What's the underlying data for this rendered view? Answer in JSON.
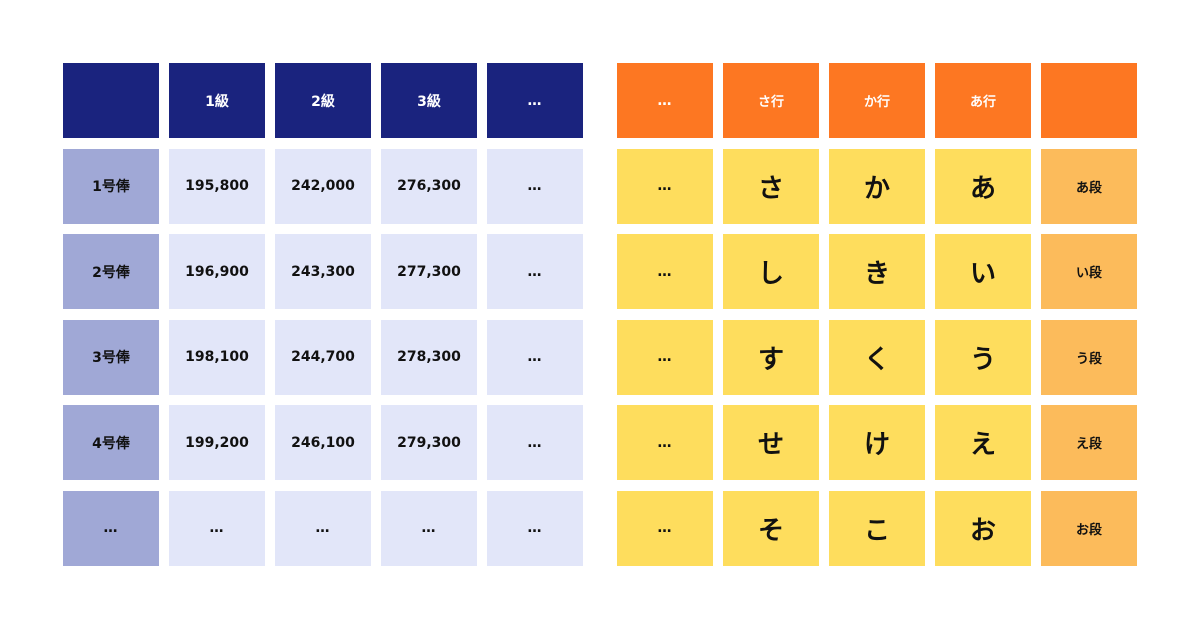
{
  "salary_table": {
    "header": [
      "",
      "1級",
      "2級",
      "3級",
      "…"
    ],
    "rows": [
      {
        "label": "1号俸",
        "values": [
          "195,800",
          "242,000",
          "276,300",
          "…"
        ]
      },
      {
        "label": "2号俸",
        "values": [
          "196,900",
          "243,300",
          "277,300",
          "…"
        ]
      },
      {
        "label": "3号俸",
        "values": [
          "198,100",
          "244,700",
          "278,300",
          "…"
        ]
      },
      {
        "label": "4号俸",
        "values": [
          "199,200",
          "246,100",
          "279,300",
          "…"
        ]
      },
      {
        "label": "…",
        "values": [
          "…",
          "…",
          "…",
          "…"
        ]
      }
    ]
  },
  "kana_table": {
    "header": [
      "…",
      "さ行",
      "か行",
      "あ行",
      ""
    ],
    "rows": [
      {
        "values": [
          "…",
          "さ",
          "か",
          "あ"
        ],
        "label": "あ段"
      },
      {
        "values": [
          "…",
          "し",
          "き",
          "い"
        ],
        "label": "い段"
      },
      {
        "values": [
          "…",
          "す",
          "く",
          "う"
        ],
        "label": "う段"
      },
      {
        "values": [
          "…",
          "せ",
          "け",
          "え"
        ],
        "label": "え段"
      },
      {
        "values": [
          "…",
          "そ",
          "こ",
          "お"
        ],
        "label": "お段"
      }
    ]
  },
  "colors": {
    "salary_header": "#1a237e",
    "salary_row_header": "#a0a8d6",
    "salary_body": "#e2e6f9",
    "kana_header": "#fd7722",
    "kana_body": "#fedd5d",
    "kana_row_header": "#fcbb5b"
  }
}
